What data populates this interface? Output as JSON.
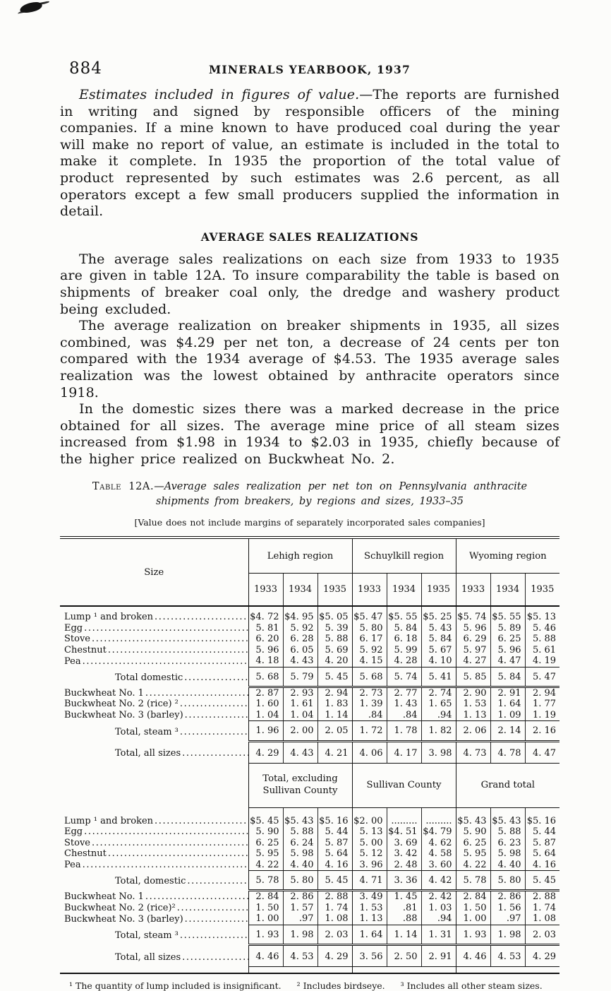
{
  "page": {
    "number": "884",
    "running_title": "MINERALS YEARBOOK, 1937"
  },
  "paragraphs": {
    "p1_lead": "Estimates included in figures of value.",
    "p1_rest": "—The reports are furnished in writing and signed by responsible officers of the mining companies. If a mine known to have produced coal during the year will make no report of value, an estimate is included in the total to make it complete. In 1935 the proportion of the total value of product represented by such estimates was 2.6 percent, as all operators except a few small producers supplied the information in detail.",
    "section_heading": "AVERAGE SALES REALIZATIONS",
    "p2": "The average sales realizations on each size from 1933 to 1935 are given in table 12A. To insure comparability the table is based on shipments of breaker coal only, the dredge and washery product being excluded.",
    "p3": "The average realization on breaker shipments in 1935, all sizes combined, was $4.29 per net ton, a decrease of 24 cents per ton compared with the 1934 average of $4.53. The 1935 average sales realization was the lowest obtained by anthracite operators since 1918.",
    "p4": "In the domestic sizes there was a marked decrease in the price obtained for all sizes. The average mine price of all steam sizes increased from $1.98 in 1934 to $2.03 in 1935, chiefly because of the higher price realized on Buckwheat No. 2."
  },
  "table": {
    "caption_label": "Table 12A.",
    "caption_line1_rest": "—Average sales realization per net ton on Pennsylvania anthracite",
    "caption_line2": "shipments from breakers, by regions and sizes, 1933–35",
    "bracket_note": "[Value does not include margins of separately incorporated sales companies]",
    "stub_header": "Size",
    "years": [
      "1933",
      "1934",
      "1935"
    ],
    "part1": {
      "groups": [
        "Lehigh region",
        "Schuylkill region",
        "Wyoming region"
      ],
      "rows": [
        {
          "type": "size",
          "label": "Lump ¹ and broken",
          "values": [
            "$4. 72",
            "$4. 95",
            "$5. 05",
            "$5. 47",
            "$5. 55",
            "$5. 25",
            "$5. 74",
            "$5. 55",
            "$5. 13"
          ]
        },
        {
          "type": "size",
          "label": "Egg",
          "values": [
            "5. 81",
            "5. 92",
            "5. 39",
            "5. 80",
            "5. 84",
            "5. 43",
            "5. 96",
            "5. 89",
            "5. 46"
          ]
        },
        {
          "type": "size",
          "label": "Stove",
          "values": [
            "6. 20",
            "6. 28",
            "5. 88",
            "6. 17",
            "6. 18",
            "5. 84",
            "6. 29",
            "6. 25",
            "5. 88"
          ]
        },
        {
          "type": "size",
          "label": "Chestnut",
          "values": [
            "5. 96",
            "6. 05",
            "5. 69",
            "5. 92",
            "5. 99",
            "5. 67",
            "5. 97",
            "5. 96",
            "5. 61"
          ]
        },
        {
          "type": "size",
          "label": "Pea",
          "values": [
            "4. 18",
            "4. 43",
            "4. 20",
            "4. 15",
            "4. 28",
            "4. 10",
            "4. 27",
            "4. 47",
            "4. 19"
          ]
        },
        {
          "type": "dbl",
          "label": "Total domestic",
          "values": [
            "5. 68",
            "5. 79",
            "5. 45",
            "5. 68",
            "5. 74",
            "5. 41",
            "5. 85",
            "5. 84",
            "5. 47"
          ]
        },
        {
          "type": "size",
          "label": "Buckwheat No. 1",
          "values": [
            "2. 87",
            "2. 93",
            "2. 94",
            "2. 73",
            "2. 77",
            "2. 74",
            "2. 90",
            "2. 91",
            "2. 94"
          ]
        },
        {
          "type": "size",
          "label": "Buckwheat No. 2 (rice) ²",
          "values": [
            "1. 60",
            "1. 61",
            "1. 83",
            "1. 39",
            "1. 43",
            "1. 65",
            "1. 53",
            "1. 64",
            "1. 77"
          ]
        },
        {
          "type": "size",
          "label": "Buckwheat No. 3 (barley)",
          "values": [
            "1. 04",
            "1. 04",
            "1. 14",
            ".84",
            ".84",
            ".94",
            "1. 13",
            "1. 09",
            "1. 19"
          ]
        },
        {
          "type": "dbl",
          "label": "Total, steam ³",
          "values": [
            "1. 96",
            "2. 00",
            "2. 05",
            "1. 72",
            "1. 78",
            "1. 82",
            "2. 06",
            "2. 14",
            "2. 16"
          ]
        },
        {
          "type": "end",
          "label": "Total, all sizes",
          "values": [
            "4. 29",
            "4. 43",
            "4. 21",
            "4. 06",
            "4. 17",
            "3. 98",
            "4. 73",
            "4. 78",
            "4. 47"
          ]
        }
      ]
    },
    "part2": {
      "groups": [
        "Total, excluding Sullivan County",
        "Sullivan County",
        "Grand total"
      ],
      "rows": [
        {
          "type": "size",
          "label": "Lump ¹ and broken",
          "values": [
            "$5. 45",
            "$5. 43",
            "$5. 16",
            "$2. 00",
            ".........",
            ".........",
            "$5. 43",
            "$5. 43",
            "$5. 16"
          ]
        },
        {
          "type": "size",
          "label": "Egg",
          "values": [
            "5. 90",
            "5. 88",
            "5. 44",
            "5. 13",
            "$4. 51",
            "$4. 79",
            "5. 90",
            "5. 88",
            "5. 44"
          ]
        },
        {
          "type": "size",
          "label": "Stove",
          "values": [
            "6. 25",
            "6. 24",
            "5. 87",
            "5. 00",
            "3. 69",
            "4. 62",
            "6. 25",
            "6. 23",
            "5. 87"
          ]
        },
        {
          "type": "size",
          "label": "Chestnut",
          "values": [
            "5. 95",
            "5. 98",
            "5. 64",
            "5. 12",
            "3. 42",
            "4. 58",
            "5. 95",
            "5. 98",
            "5. 64"
          ]
        },
        {
          "type": "size",
          "label": "Pea",
          "values": [
            "4. 22",
            "4. 40",
            "4. 16",
            "3. 96",
            "2. 48",
            "3. 60",
            "4. 22",
            "4. 40",
            "4. 16"
          ]
        },
        {
          "type": "dbl",
          "label": "Total, domestic",
          "values": [
            "5. 78",
            "5. 80",
            "5. 45",
            "4. 71",
            "3. 36",
            "4. 42",
            "5. 78",
            "5. 80",
            "5. 45"
          ]
        },
        {
          "type": "size",
          "label": "Buckwheat No. 1",
          "values": [
            "2. 84",
            "2. 86",
            "2. 88",
            "3. 49",
            "1. 45",
            "2. 42",
            "2. 84",
            "2. 86",
            "2. 88"
          ]
        },
        {
          "type": "size",
          "label": "Buckwheat No. 2 (rice)²",
          "values": [
            "1. 50",
            "1. 57",
            "1. 74",
            "1. 53",
            ".81",
            "1. 03",
            "1. 50",
            "1. 56",
            "1. 74"
          ]
        },
        {
          "type": "size",
          "label": "Buckwheat No. 3 (barley)",
          "values": [
            "1. 00",
            ".97",
            "1. 08",
            "1. 13",
            ".88",
            ".94",
            "1. 00",
            ".97",
            "1. 08"
          ]
        },
        {
          "type": "dbl",
          "label": "Total, steam ³",
          "values": [
            "1. 93",
            "1. 98",
            "2. 03",
            "1. 64",
            "1. 14",
            "1. 31",
            "1. 93",
            "1. 98",
            "2. 03"
          ]
        },
        {
          "type": "end",
          "label": "Total, all sizes",
          "values": [
            "4. 46",
            "4. 53",
            "4. 29",
            "3. 56",
            "2. 50",
            "2. 91",
            "4. 46",
            "4. 53",
            "4. 29"
          ]
        }
      ]
    },
    "footnotes": [
      "¹ The quantity of lump included is insignificant.",
      "² Includes birdseye.",
      "³ Includes all other steam sizes."
    ]
  }
}
